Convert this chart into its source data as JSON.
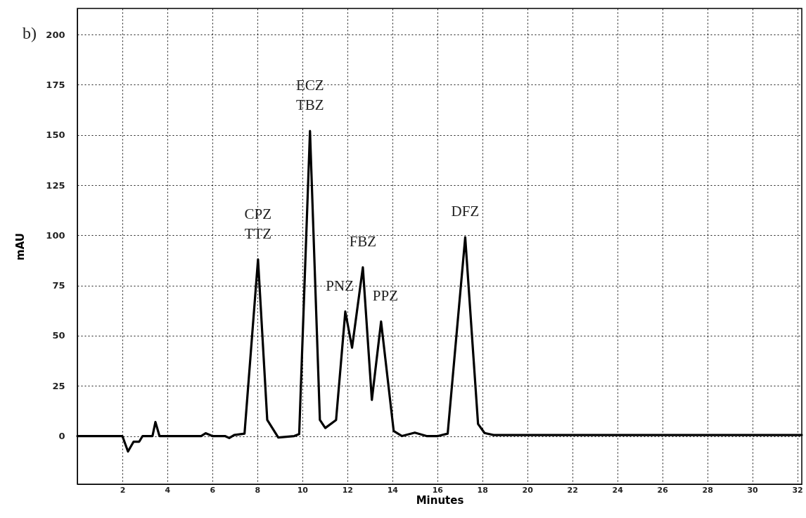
{
  "chart_data": {
    "type": "line",
    "title": "b)",
    "xlabel": "Minutes",
    "ylabel": "mAU",
    "xlim": [
      0,
      32.2
    ],
    "xticks": [
      2,
      4,
      6,
      8,
      10,
      12,
      14,
      16,
      18,
      20,
      22,
      24,
      26,
      28,
      30,
      32
    ],
    "ylim": [
      -24,
      213
    ],
    "yticks": [
      0,
      25,
      50,
      75,
      100,
      125,
      150,
      175,
      200
    ],
    "grid": true,
    "line_style": "solid",
    "marker": "none",
    "series": [
      {
        "color": "#000000",
        "x": [
          0,
          2.0,
          2.25,
          2.5,
          2.75,
          2.9,
          3.34,
          3.47,
          3.65,
          5.5,
          5.7,
          6.0,
          6.56,
          6.75,
          6.97,
          7.43,
          8.03,
          8.44,
          8.93,
          9.64,
          9.86,
          10.34,
          10.78,
          11.02,
          11.5,
          11.91,
          12.21,
          12.69,
          13.09,
          13.5,
          14.06,
          14.43,
          15.0,
          15.52,
          16.03,
          16.46,
          17.24,
          17.81,
          18.1,
          18.5,
          20,
          32.2
        ],
        "values": [
          0,
          0,
          -7.7,
          -2.8,
          -2.8,
          0,
          0,
          7,
          0,
          0,
          1.4,
          0,
          0,
          -1,
          0.5,
          1.2,
          88,
          8,
          -0.7,
          0,
          1,
          152,
          8,
          4,
          8,
          62,
          44,
          84,
          18,
          57,
          2.5,
          0,
          1.7,
          0,
          0,
          1.2,
          99,
          6,
          1.5,
          0.5,
          0.5,
          0.5
        ]
      }
    ],
    "annotations": [
      {
        "text": "CPZ",
        "x": 8.03,
        "y": 88
      },
      {
        "text": "TTZ",
        "x": 8.03,
        "y": 88
      },
      {
        "text": "ECZ",
        "x": 10.34,
        "y": 152
      },
      {
        "text": "TBZ",
        "x": 10.34,
        "y": 152
      },
      {
        "text": "PNZ",
        "x": 11.91,
        "y": 62
      },
      {
        "text": "FBZ",
        "x": 12.69,
        "y": 84
      },
      {
        "text": "PPZ",
        "x": 13.5,
        "y": 57
      },
      {
        "text": "DFZ",
        "x": 17.24,
        "y": 99
      }
    ]
  }
}
